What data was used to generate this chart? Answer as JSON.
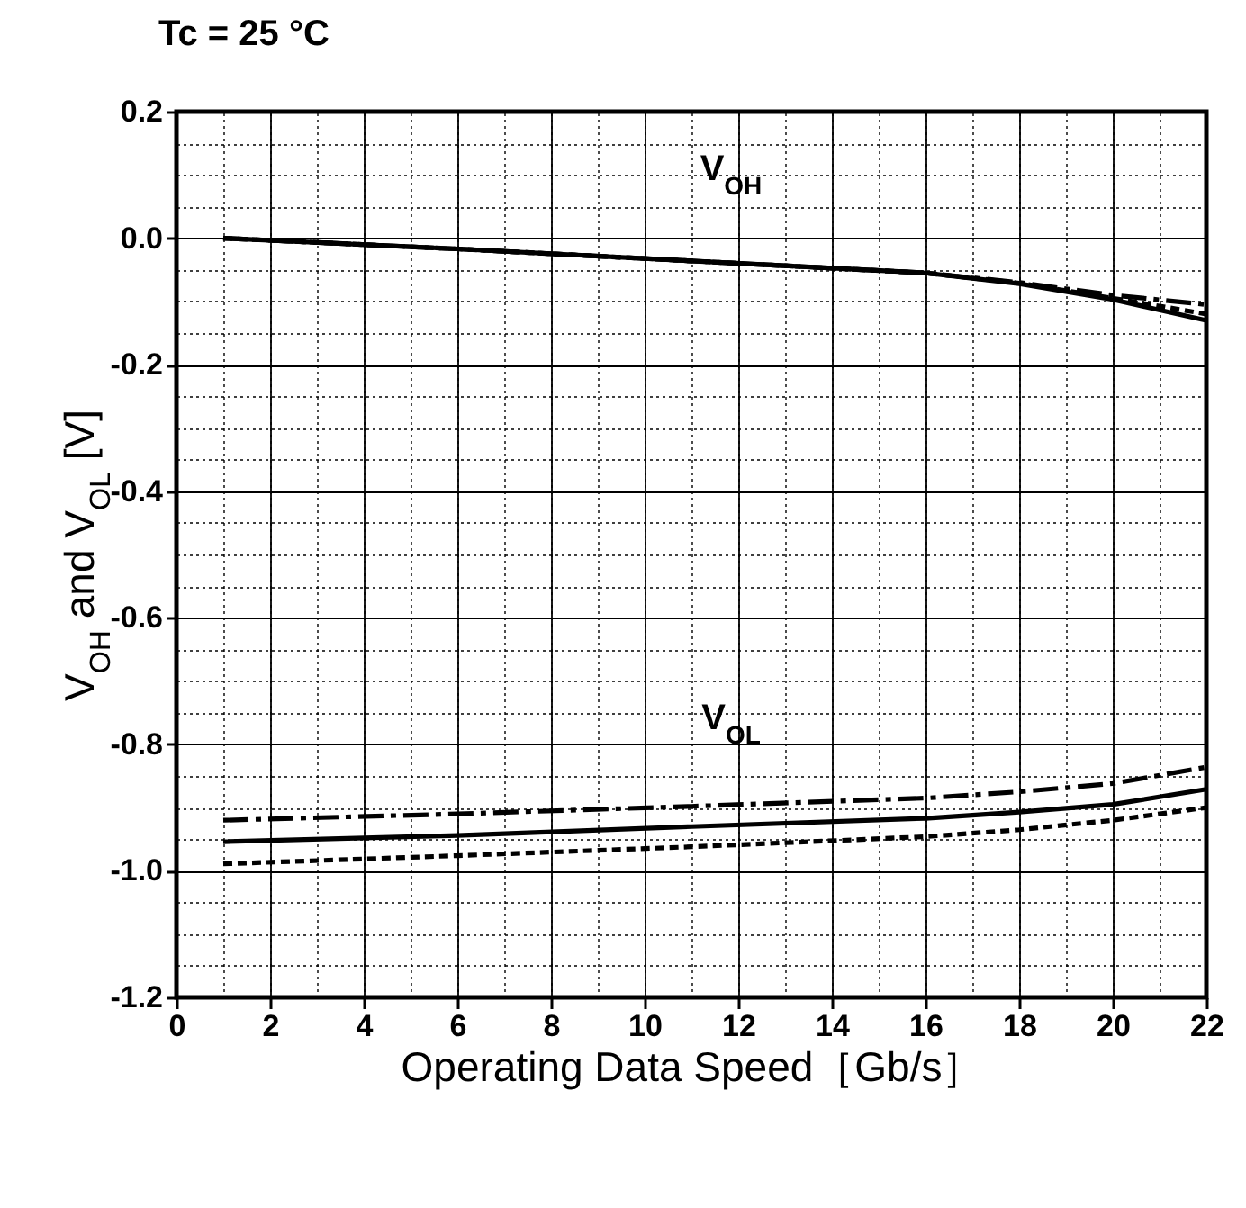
{
  "chart_data": {
    "type": "line",
    "title": "Tc = 25 °C",
    "xlabel": "Operating Data Speed［Gb/s］",
    "ylabel": "V$_{OH}$ and V$_{OL}$  [V]",
    "x": [
      1,
      6,
      11,
      16,
      18,
      20,
      22
    ],
    "series": [
      {
        "color": "#000000",
        "line_style": "solid",
        "values": [
          0.0,
          -0.017,
          -0.036,
          -0.055,
          -0.072,
          -0.097,
          -0.13
        ]
      },
      {
        "color": "#000000",
        "line_style": "dashed",
        "values": [
          0.0,
          -0.017,
          -0.036,
          -0.055,
          -0.07,
          -0.09,
          -0.105
        ]
      },
      {
        "color": "#000000",
        "line_style": "dotted",
        "values": [
          0.0,
          -0.017,
          -0.036,
          -0.055,
          -0.071,
          -0.095,
          -0.12
        ]
      },
      {
        "color": "#000000",
        "line_style": "dashed",
        "values": [
          -0.92,
          -0.91,
          -0.898,
          -0.885,
          -0.875,
          -0.862,
          -0.836
        ]
      },
      {
        "color": "#000000",
        "line_style": "solid",
        "values": [
          -0.954,
          -0.944,
          -0.93,
          -0.917,
          -0.907,
          -0.895,
          -0.871
        ]
      },
      {
        "color": "#000000",
        "line_style": "dotted",
        "values": [
          -0.989,
          -0.976,
          -0.962,
          -0.946,
          -0.935,
          -0.92,
          -0.9
        ]
      }
    ],
    "xlim": [
      0,
      22
    ],
    "ylim": [
      -1.2,
      0.2
    ],
    "xticks": [
      0,
      2,
      4,
      6,
      8,
      10,
      12,
      14,
      16,
      18,
      20,
      22
    ],
    "yticks": [
      {
        "value": 0.2,
        "label": "0.2"
      },
      {
        "value": 0,
        "label": "0.0"
      },
      {
        "value": -0.2,
        "label": "-0.2"
      },
      {
        "value": -0.4,
        "label": "-0.4"
      },
      {
        "value": -0.6,
        "label": "-0.6"
      },
      {
        "value": -0.8,
        "label": "-0.8"
      },
      {
        "value": -1.0,
        "label": "-1.0"
      },
      {
        "value": -1.2,
        "label": "-1.2"
      }
    ],
    "grid": true,
    "annotations": [
      "V$_{OH}$",
      "V$_{OL}$"
    ]
  }
}
